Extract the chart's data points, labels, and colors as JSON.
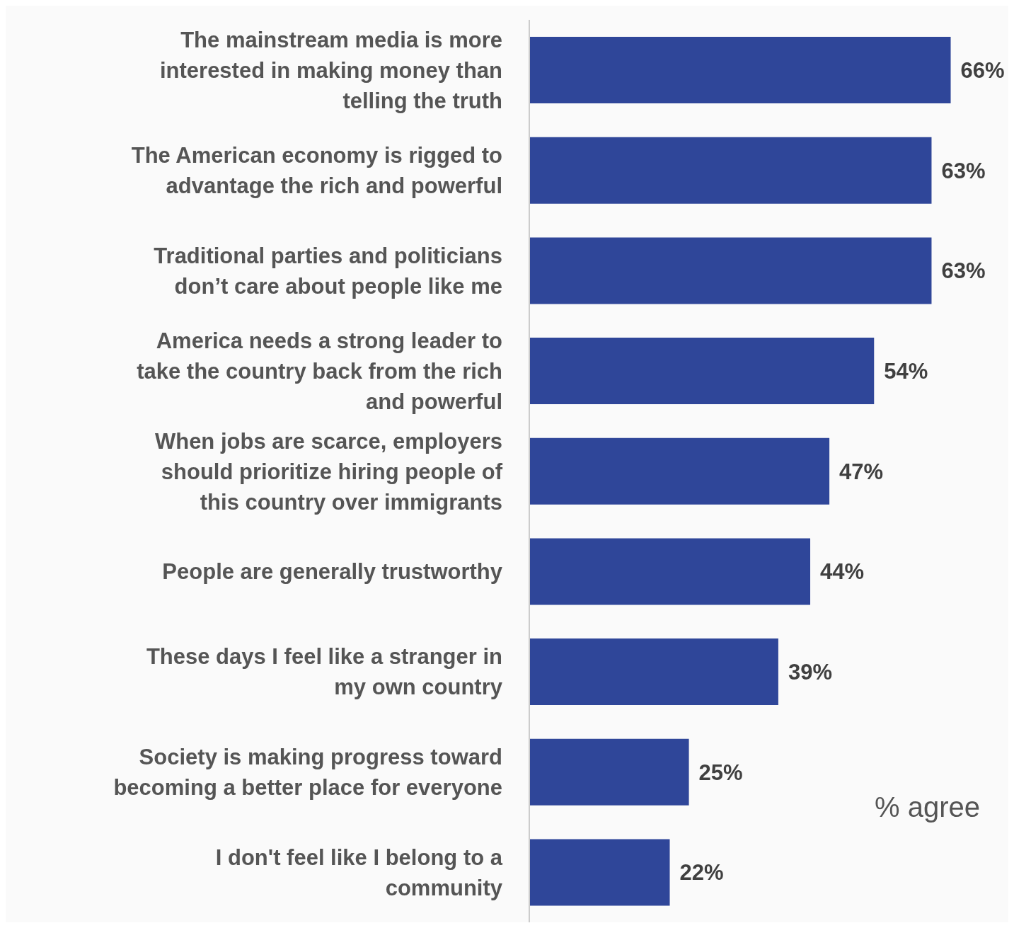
{
  "chart_data": {
    "type": "bar",
    "orientation": "horizontal",
    "categories": [
      "The mainstream media is more interested in making money than telling the truth",
      "The American economy is rigged to advantage the rich and powerful",
      "Traditional parties and politicians don’t care about people like me",
      "America needs a strong leader to take the country back from the rich and powerful",
      "When jobs are scarce, employers should prioritize hiring people of this country over immigrants",
      "People are generally trustworthy",
      "These days I feel like a stranger in my own country",
      "Society is making progress toward becoming a better place for everyone",
      "I don't feel like I belong to a community"
    ],
    "values": [
      66,
      63,
      63,
      54,
      47,
      44,
      39,
      25,
      22
    ],
    "value_labels": [
      "66%",
      "63%",
      "63%",
      "54%",
      "47%",
      "44%",
      "39%",
      "25%",
      "22%"
    ],
    "color": "#2f4699",
    "annotations": [
      "% agree"
    ]
  }
}
